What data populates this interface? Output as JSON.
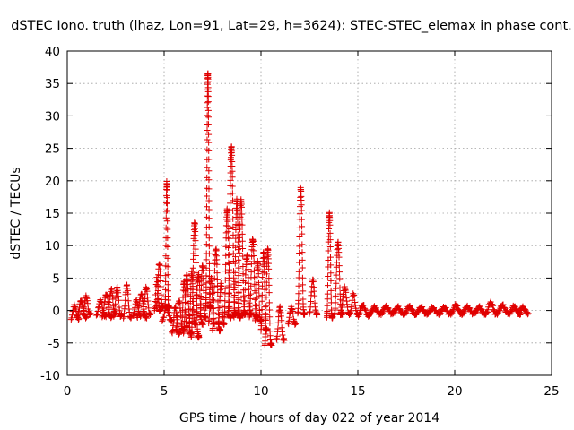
{
  "chart_data": {
    "type": "scatter",
    "title": "dSTEC Iono. truth (lhaz, Lon=91, Lat=29, h=3624): STEC-STEC_elemax in phase cont.",
    "xlabel": "GPS time / hours of day 022 of year 2014",
    "ylabel": "dSTEC  / TECUs",
    "xlim": [
      0,
      25
    ],
    "ylim": [
      -10,
      40
    ],
    "xticks": [
      0,
      5,
      10,
      15,
      20,
      25
    ],
    "yticks": [
      -10,
      -5,
      0,
      5,
      10,
      15,
      20,
      25,
      30,
      35,
      40
    ],
    "grid": true,
    "marker": "+",
    "color": "#e00000",
    "arcs": [
      {
        "t": [
          0.2,
          0.6
        ],
        "y": [
          -1.2,
          0.8
        ]
      },
      {
        "t": [
          0.5,
          1.0
        ],
        "y": [
          -1.0,
          1.5
        ]
      },
      {
        "t": [
          0.8,
          1.2
        ],
        "y": [
          -0.5,
          2.2
        ]
      },
      {
        "t": [
          1.5,
          2.0
        ],
        "y": [
          -0.8,
          1.5
        ]
      },
      {
        "t": [
          1.8,
          2.3
        ],
        "y": [
          -1.0,
          2.5
        ]
      },
      {
        "t": [
          2.1,
          2.5
        ],
        "y": [
          -0.5,
          3.2
        ]
      },
      {
        "t": [
          2.4,
          2.8
        ],
        "y": [
          -0.8,
          3.5
        ]
      },
      {
        "t": [
          2.9,
          3.3
        ],
        "y": [
          -1.0,
          3.8
        ]
      },
      {
        "t": [
          3.4,
          3.8
        ],
        "y": [
          -0.8,
          1.5
        ]
      },
      {
        "t": [
          3.6,
          4.1
        ],
        "y": [
          -1.0,
          2.5
        ]
      },
      {
        "t": [
          3.9,
          4.3
        ],
        "y": [
          -0.5,
          3.5
        ]
      },
      {
        "t": [
          4.5,
          4.8
        ],
        "y": [
          0.0,
          5.0
        ]
      },
      {
        "t": [
          4.6,
          4.95
        ],
        "y": [
          0.5,
          7.2
        ]
      },
      {
        "t": [
          4.9,
          5.4
        ],
        "y": [
          -1.5,
          0.5
        ]
      },
      {
        "t": [
          5.05,
          5.25
        ],
        "y": [
          0.5,
          19.8
        ]
      },
      {
        "t": [
          5.4,
          5.8
        ],
        "y": [
          -3.5,
          0.5
        ]
      },
      {
        "t": [
          5.6,
          6.0
        ],
        "y": [
          -3.0,
          1.5
        ]
      },
      {
        "t": [
          5.9,
          6.2
        ],
        "y": [
          -2.5,
          4.5
        ]
      },
      {
        "t": [
          6.0,
          6.4
        ],
        "y": [
          -3.5,
          5.5
        ]
      },
      {
        "t": [
          6.3,
          6.6
        ],
        "y": [
          -2.0,
          6.0
        ]
      },
      {
        "t": [
          6.4,
          6.8
        ],
        "y": [
          -4.0,
          13.5
        ]
      },
      {
        "t": [
          6.6,
          7.0
        ],
        "y": [
          -2.0,
          5.5
        ]
      },
      {
        "t": [
          6.85,
          7.15
        ],
        "y": [
          -1.0,
          7.0
        ]
      },
      {
        "t": [
          7.15,
          7.4
        ],
        "y": [
          0.5,
          36.5
        ]
      },
      {
        "t": [
          7.3,
          7.6
        ],
        "y": [
          -2.0,
          5.0
        ]
      },
      {
        "t": [
          7.5,
          7.9
        ],
        "y": [
          -3.0,
          9.5
        ]
      },
      {
        "t": [
          7.8,
          8.1
        ],
        "y": [
          -2.0,
          4.0
        ]
      },
      {
        "t": [
          8.1,
          8.45
        ],
        "y": [
          -1.0,
          15.5
        ]
      },
      {
        "t": [
          8.3,
          8.7
        ],
        "y": [
          -0.5,
          25.2
        ]
      },
      {
        "t": [
          8.6,
          8.95
        ],
        "y": [
          -1.0,
          17.0
        ]
      },
      {
        "t": [
          8.8,
          9.2
        ],
        "y": [
          -0.5,
          17.0
        ]
      },
      {
        "t": [
          9.1,
          9.5
        ],
        "y": [
          -0.5,
          8.5
        ]
      },
      {
        "t": [
          9.4,
          9.8
        ],
        "y": [
          -1.0,
          11.0
        ]
      },
      {
        "t": [
          9.7,
          10.0
        ],
        "y": [
          -1.5,
          7.5
        ]
      },
      {
        "t": [
          10.0,
          10.3
        ],
        "y": [
          -3.0,
          9.0
        ]
      },
      {
        "t": [
          10.2,
          10.55
        ],
        "y": [
          -5.2,
          9.5
        ]
      },
      {
        "t": [
          10.8,
          11.2
        ],
        "y": [
          -4.5,
          0.5
        ]
      },
      {
        "t": [
          11.4,
          11.8
        ],
        "y": [
          -2.0,
          0.5
        ]
      },
      {
        "t": [
          11.9,
          12.25
        ],
        "y": [
          -0.5,
          18.8
        ]
      },
      {
        "t": [
          12.5,
          12.9
        ],
        "y": [
          -0.5,
          4.8
        ]
      },
      {
        "t": [
          13.4,
          13.7
        ],
        "y": [
          -1.0,
          15.0
        ]
      },
      {
        "t": [
          13.8,
          14.2
        ],
        "y": [
          -0.5,
          10.5
        ]
      },
      {
        "t": [
          14.1,
          14.6
        ],
        "y": [
          -0.5,
          3.5
        ]
      },
      {
        "t": [
          14.6,
          15.0
        ],
        "y": [
          -0.5,
          2.5
        ]
      },
      {
        "t": [
          15.0,
          15.6
        ],
        "y": [
          -0.8,
          0.8
        ]
      },
      {
        "t": [
          15.6,
          16.2
        ],
        "y": [
          -0.5,
          0.5
        ]
      },
      {
        "t": [
          16.2,
          16.8
        ],
        "y": [
          -0.4,
          0.6
        ]
      },
      {
        "t": [
          16.8,
          17.4
        ],
        "y": [
          -0.5,
          0.5
        ]
      },
      {
        "t": [
          17.4,
          18.0
        ],
        "y": [
          -0.5,
          0.6
        ]
      },
      {
        "t": [
          18.0,
          18.6
        ],
        "y": [
          -0.5,
          0.5
        ]
      },
      {
        "t": [
          18.6,
          19.2
        ],
        "y": [
          -0.4,
          0.4
        ]
      },
      {
        "t": [
          19.2,
          19.8
        ],
        "y": [
          -0.5,
          0.5
        ]
      },
      {
        "t": [
          19.8,
          20.4
        ],
        "y": [
          -0.5,
          0.8
        ]
      },
      {
        "t": [
          20.4,
          21.0
        ],
        "y": [
          -0.4,
          0.6
        ]
      },
      {
        "t": [
          21.0,
          21.6
        ],
        "y": [
          -0.5,
          0.5
        ]
      },
      {
        "t": [
          21.6,
          22.2
        ],
        "y": [
          -0.5,
          1.2
        ]
      },
      {
        "t": [
          22.2,
          22.8
        ],
        "y": [
          -0.4,
          0.8
        ]
      },
      {
        "t": [
          22.8,
          23.4
        ],
        "y": [
          -0.5,
          0.6
        ]
      },
      {
        "t": [
          23.3,
          23.8
        ],
        "y": [
          -0.4,
          0.5
        ]
      }
    ]
  }
}
